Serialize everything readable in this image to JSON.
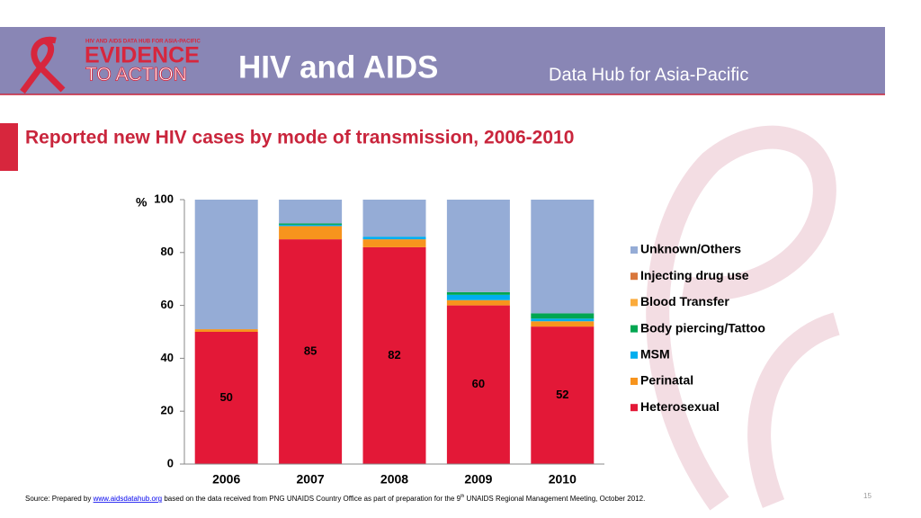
{
  "header": {
    "logo_small": "HIV AND AIDS DATA HUB FOR ASIA-PACIFIC",
    "logo_top": "EVIDENCE",
    "logo_bottom": "TO ACTION",
    "title": "HIV and AIDS",
    "subtitle": "Data Hub for Asia-Pacific"
  },
  "chart_data": {
    "type": "stacked_bar",
    "title": "Reported new HIV cases by mode of transmission, 2006-2010",
    "y_label": "%",
    "categories": [
      "2006",
      "2007",
      "2008",
      "2009",
      "2010"
    ],
    "series": [
      {
        "name": "Heterosexual",
        "color": "#e31837",
        "values": [
          50,
          85,
          82,
          60,
          52
        ]
      },
      {
        "name": "Perinatal",
        "color": "#f7941d",
        "values": [
          1,
          5,
          3,
          2,
          2
        ]
      },
      {
        "name": "MSM",
        "color": "#00aeef",
        "values": [
          0,
          0.5,
          1,
          2,
          1
        ]
      },
      {
        "name": "Body piercing/Tattoo",
        "color": "#00a651",
        "values": [
          0,
          0.5,
          0,
          1,
          2
        ]
      },
      {
        "name": "Blood Transfer",
        "color": "#fbab3c",
        "values": [
          0,
          0,
          0,
          0,
          0
        ]
      },
      {
        "name": "Injecting drug use",
        "color": "#d9773c",
        "values": [
          0,
          0,
          0,
          0,
          0
        ]
      },
      {
        "name": "Unknown/Others",
        "color": "#95acd6",
        "values": [
          49,
          9,
          14,
          35,
          43
        ]
      }
    ],
    "ylim": [
      0,
      100
    ],
    "yticks": [
      0,
      20,
      40,
      60,
      80,
      100
    ],
    "legend": "right"
  },
  "footer": {
    "prefix": "Source: Prepared by ",
    "link": "www.aidsdatahub.org",
    "middle": "  based on the data received  from PNG UNAIDS Country Office as part of preparation for the 9",
    "sup": "th",
    "suffix": " UNAIDS Regional Management Meeting, October 2012.",
    "page_number": "15"
  }
}
